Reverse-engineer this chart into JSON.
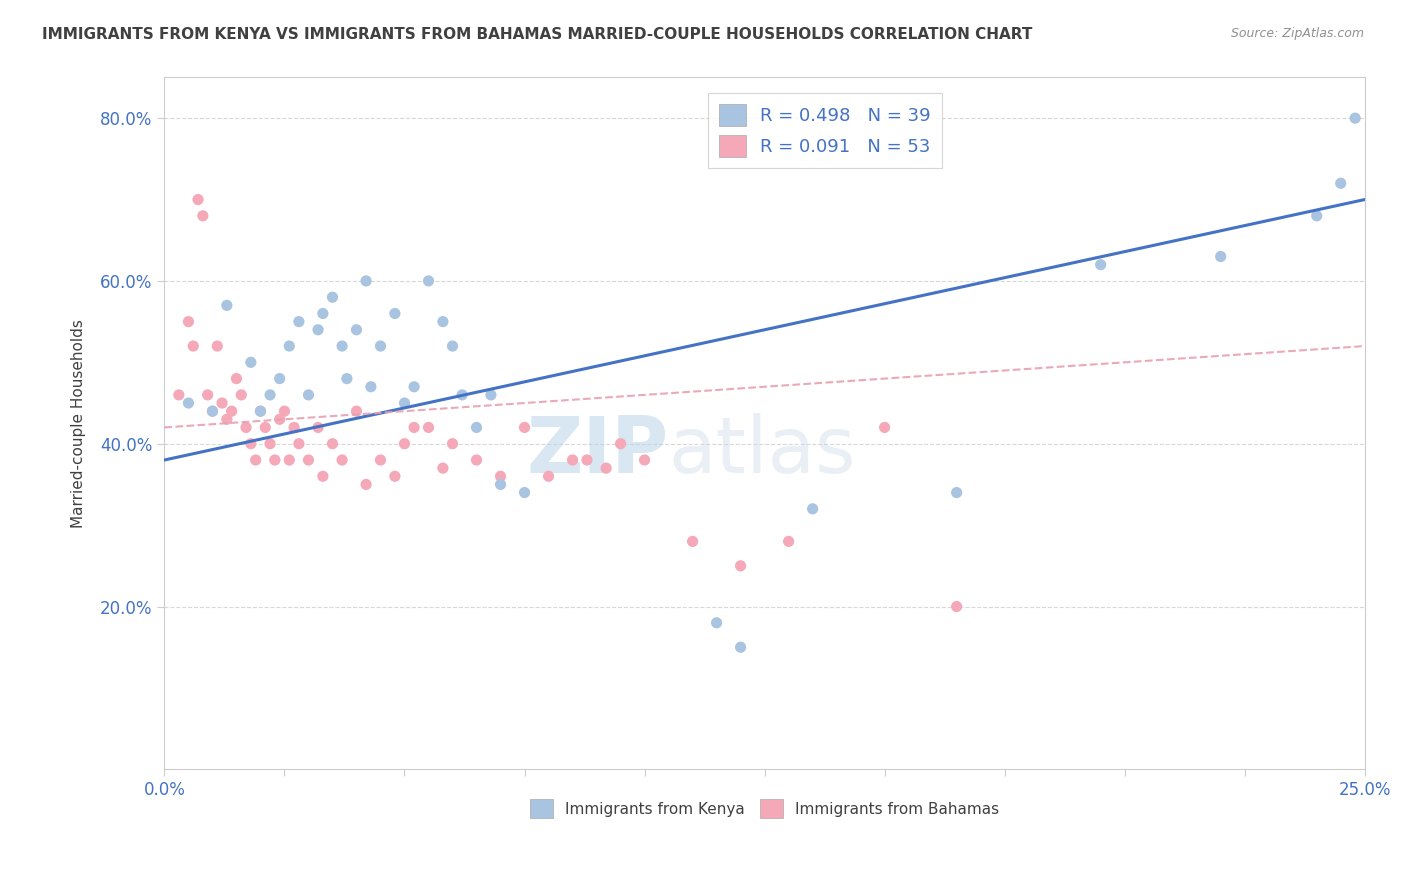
{
  "title": "IMMIGRANTS FROM KENYA VS IMMIGRANTS FROM BAHAMAS MARRIED-COUPLE HOUSEHOLDS CORRELATION CHART",
  "source": "Source: ZipAtlas.com",
  "ylabel": "Married-couple Households",
  "xlim": [
    0.0,
    0.25
  ],
  "ylim": [
    0.0,
    0.85
  ],
  "ytick_labels": [
    "20.0%",
    "40.0%",
    "60.0%",
    "80.0%"
  ],
  "ytick_values": [
    0.2,
    0.4,
    0.6,
    0.8
  ],
  "kenya_color": "#a8c4e0",
  "bahamas_color": "#f4a8b8",
  "kenya_line_color": "#4472c4",
  "bahamas_line_color": "#e8a0b0",
  "title_color": "#404040",
  "source_color": "#909090",
  "axis_label_color": "#4472c4",
  "watermark_zip": "ZIP",
  "watermark_atlas": "atlas",
  "kenya_scatter_x": [
    0.005,
    0.01,
    0.013,
    0.018,
    0.02,
    0.022,
    0.024,
    0.026,
    0.028,
    0.03,
    0.032,
    0.033,
    0.035,
    0.037,
    0.038,
    0.04,
    0.042,
    0.043,
    0.045,
    0.048,
    0.05,
    0.052,
    0.055,
    0.058,
    0.06,
    0.062,
    0.065,
    0.068,
    0.07,
    0.075,
    0.115,
    0.12,
    0.135,
    0.165,
    0.195,
    0.22,
    0.24,
    0.245,
    0.248
  ],
  "kenya_scatter_y": [
    0.45,
    0.44,
    0.57,
    0.5,
    0.44,
    0.46,
    0.48,
    0.52,
    0.55,
    0.46,
    0.54,
    0.56,
    0.58,
    0.52,
    0.48,
    0.54,
    0.6,
    0.47,
    0.52,
    0.56,
    0.45,
    0.47,
    0.6,
    0.55,
    0.52,
    0.46,
    0.42,
    0.46,
    0.35,
    0.34,
    0.18,
    0.15,
    0.32,
    0.34,
    0.62,
    0.63,
    0.68,
    0.72,
    0.8
  ],
  "bahamas_scatter_x": [
    0.003,
    0.005,
    0.006,
    0.007,
    0.008,
    0.009,
    0.01,
    0.011,
    0.012,
    0.013,
    0.014,
    0.015,
    0.016,
    0.017,
    0.018,
    0.019,
    0.02,
    0.021,
    0.022,
    0.023,
    0.024,
    0.025,
    0.026,
    0.027,
    0.028,
    0.03,
    0.032,
    0.033,
    0.035,
    0.037,
    0.04,
    0.042,
    0.045,
    0.048,
    0.05,
    0.052,
    0.055,
    0.058,
    0.06,
    0.065,
    0.07,
    0.075,
    0.08,
    0.085,
    0.088,
    0.092,
    0.095,
    0.1,
    0.11,
    0.12,
    0.13,
    0.15,
    0.165
  ],
  "bahamas_scatter_y": [
    0.46,
    0.55,
    0.52,
    0.7,
    0.68,
    0.46,
    0.44,
    0.52,
    0.45,
    0.43,
    0.44,
    0.48,
    0.46,
    0.42,
    0.4,
    0.38,
    0.44,
    0.42,
    0.4,
    0.38,
    0.43,
    0.44,
    0.38,
    0.42,
    0.4,
    0.38,
    0.42,
    0.36,
    0.4,
    0.38,
    0.44,
    0.35,
    0.38,
    0.36,
    0.4,
    0.42,
    0.42,
    0.37,
    0.4,
    0.38,
    0.36,
    0.42,
    0.36,
    0.38,
    0.38,
    0.37,
    0.4,
    0.38,
    0.28,
    0.25,
    0.28,
    0.42,
    0.2
  ],
  "kenya_line_x0": 0.0,
  "kenya_line_x1": 0.25,
  "kenya_line_y0": 0.38,
  "kenya_line_y1": 0.7,
  "bahamas_line_x0": 0.0,
  "bahamas_line_x1": 0.25,
  "bahamas_line_y0": 0.42,
  "bahamas_line_y1": 0.52
}
